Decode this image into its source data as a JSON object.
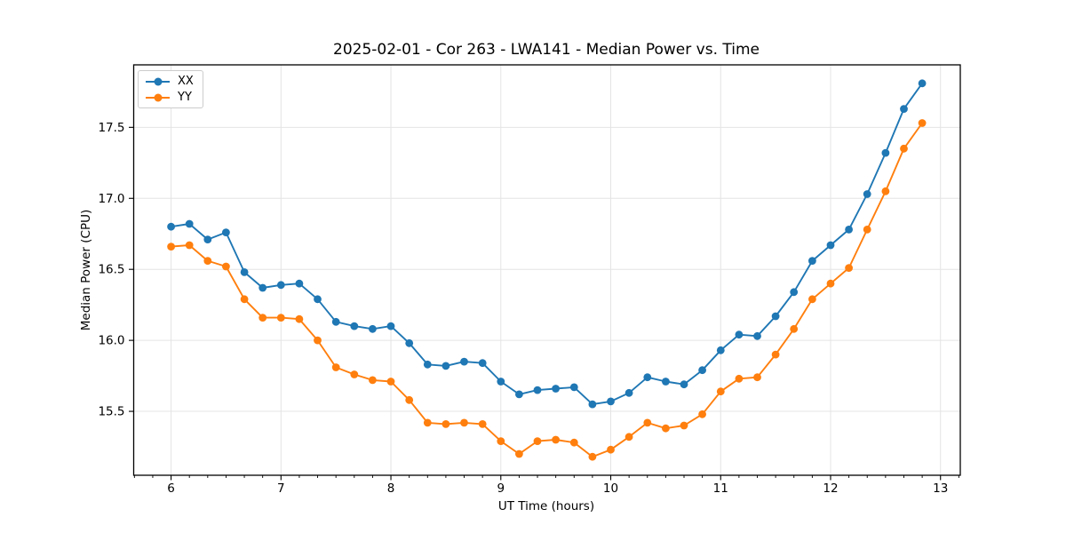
{
  "title": "2025-02-01 - Cor 263 - LWA141 - Median Power vs. Time",
  "colors": {
    "series_xx": "#1f77b4",
    "series_yy": "#ff7f0e",
    "grid": "#e4e4e4",
    "spine": "#000000",
    "text": "#000000",
    "legend_border": "#cccccc",
    "background": "#ffffff"
  },
  "chart_data": {
    "type": "line",
    "title": "2025-02-01 - Cor 263 - LWA141 - Median Power vs. Time",
    "xlabel": "UT Time (hours)",
    "ylabel": "Median Power (CPU)",
    "xlim": [
      5.66,
      13.18
    ],
    "ylim": [
      15.05,
      17.94
    ],
    "xticks": [
      6,
      7,
      8,
      9,
      10,
      11,
      12,
      13
    ],
    "yticks": [
      15.5,
      16.0,
      16.5,
      17.0,
      17.5
    ],
    "minor_xtick_step_hours": 0.16667,
    "grid": true,
    "legend_position": "upper left",
    "marker": "circle",
    "x": [
      6.0,
      6.1667,
      6.3333,
      6.5,
      6.6667,
      6.8333,
      7.0,
      7.1667,
      7.3333,
      7.5,
      7.6667,
      7.8333,
      8.0,
      8.1667,
      8.3333,
      8.5,
      8.6667,
      8.8333,
      9.0,
      9.1667,
      9.3333,
      9.5,
      9.6667,
      9.8333,
      10.0,
      10.1667,
      10.3333,
      10.5,
      10.6667,
      10.8333,
      11.0,
      11.1667,
      11.3333,
      11.5,
      11.6667,
      11.8333,
      12.0,
      12.1667,
      12.3333,
      12.5,
      12.6667,
      12.8333
    ],
    "series": [
      {
        "name": "XX",
        "color": "#1f77b4",
        "values": [
          16.8,
          16.82,
          16.71,
          16.76,
          16.48,
          16.37,
          16.39,
          16.4,
          16.29,
          16.13,
          16.1,
          16.08,
          16.1,
          15.98,
          15.83,
          15.82,
          15.85,
          15.84,
          15.71,
          15.62,
          15.65,
          15.66,
          15.67,
          15.55,
          15.57,
          15.63,
          15.74,
          15.71,
          15.69,
          15.79,
          15.93,
          16.04,
          16.03,
          16.17,
          16.34,
          16.56,
          16.67,
          16.78,
          17.03,
          17.32,
          17.63,
          17.81
        ]
      },
      {
        "name": "YY",
        "color": "#ff7f0e",
        "values": [
          16.66,
          16.67,
          16.56,
          16.52,
          16.29,
          16.16,
          16.16,
          16.15,
          16.0,
          15.81,
          15.76,
          15.72,
          15.71,
          15.58,
          15.42,
          15.41,
          15.42,
          15.41,
          15.29,
          15.2,
          15.29,
          15.3,
          15.28,
          15.18,
          15.23,
          15.32,
          15.42,
          15.38,
          15.4,
          15.48,
          15.64,
          15.73,
          15.74,
          15.9,
          16.08,
          16.29,
          16.4,
          16.51,
          16.78,
          17.05,
          17.35,
          17.53
        ]
      }
    ]
  },
  "legend": {
    "items": [
      "XX",
      "YY"
    ]
  }
}
